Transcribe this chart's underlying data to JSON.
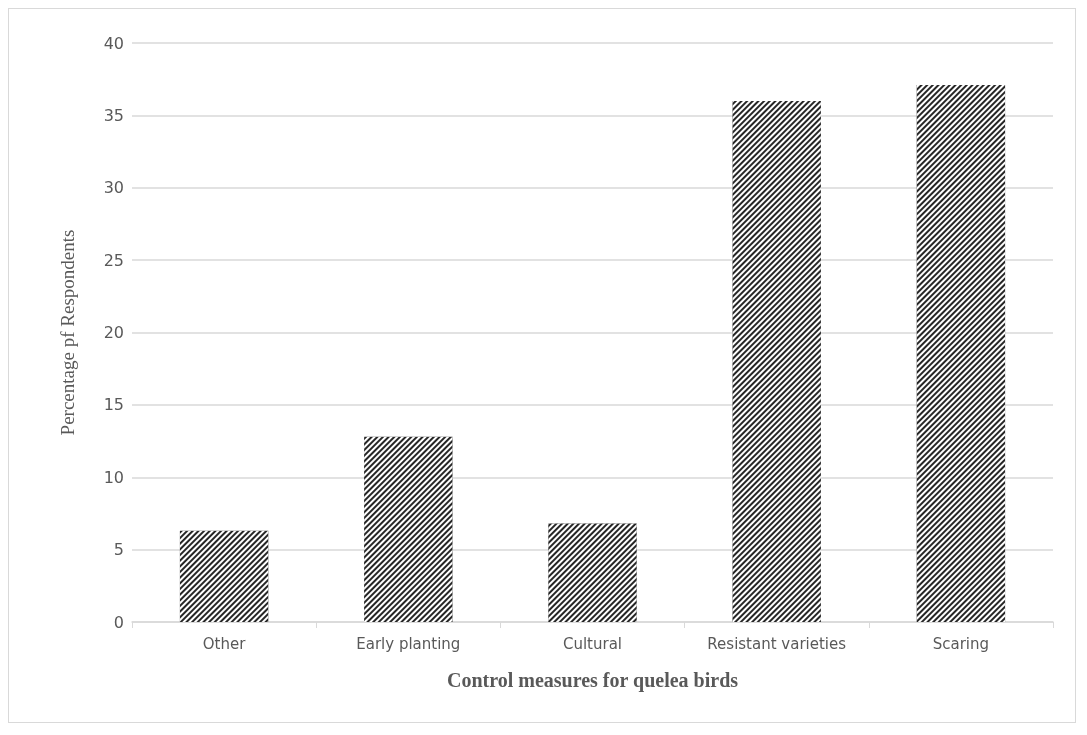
{
  "chart_data": {
    "type": "bar",
    "xlabel": "Control measures for quelea birds",
    "ylabel": "Percentage pf Respondents",
    "categories": [
      "Other",
      "Early planting",
      "Cultural",
      "Resistant varieties",
      "Scaring"
    ],
    "values": [
      6.3,
      12.8,
      6.8,
      36.0,
      37.1
    ],
    "color": "#262626",
    "ylim": [
      0,
      40
    ],
    "yticks": [
      0,
      5,
      10,
      15,
      20,
      25,
      30,
      35,
      40
    ],
    "grid": "y"
  }
}
